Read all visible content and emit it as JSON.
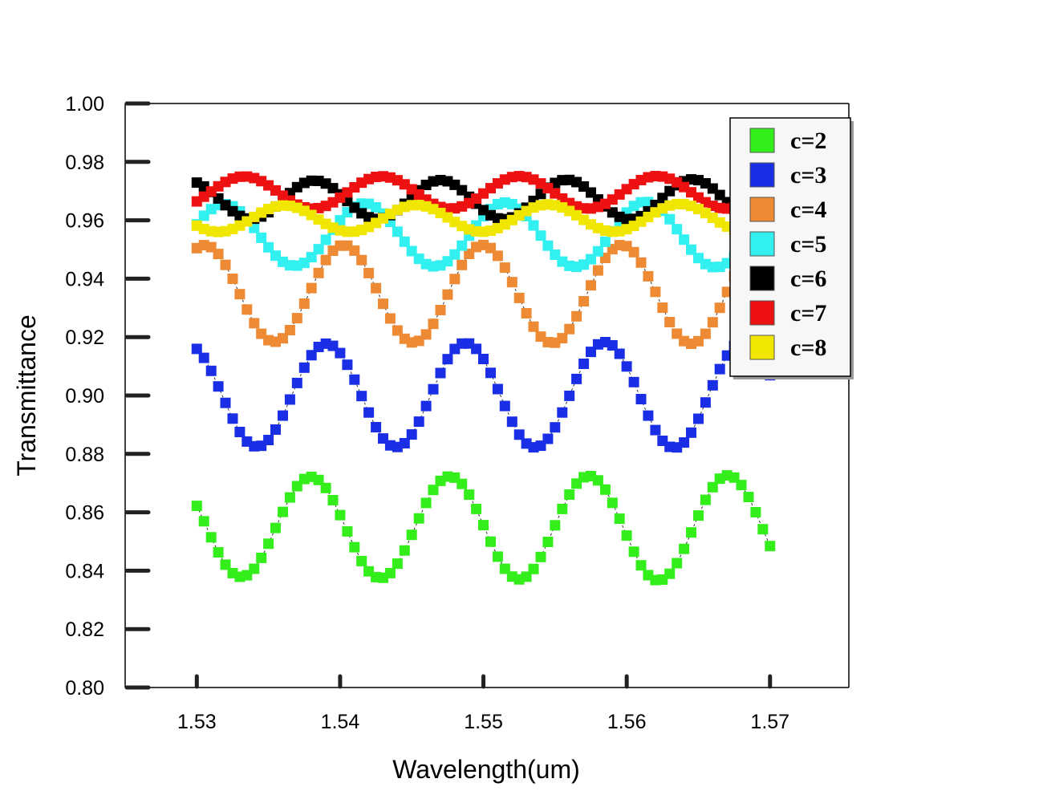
{
  "chart_data": {
    "type": "scatter",
    "xlabel": "Wavelength(um)",
    "ylabel": "Transmittance",
    "xlim": [
      1.525,
      1.5755
    ],
    "ylim": [
      0.8,
      1.0
    ],
    "xticks": [
      "1.53",
      "1.54",
      "1.55",
      "1.56",
      "1.57"
    ],
    "xtick_values": [
      1.53,
      1.54,
      1.55,
      1.56,
      1.57
    ],
    "yticks": [
      "0.80",
      "0.82",
      "0.84",
      "0.86",
      "0.88",
      "0.90",
      "0.92",
      "0.94",
      "0.96",
      "0.98",
      "1.00"
    ],
    "ytick_values": [
      0.8,
      0.82,
      0.84,
      0.86,
      0.88,
      0.9,
      0.92,
      0.94,
      0.96,
      0.98,
      1.0
    ],
    "legend_position": "top-right",
    "x_start": 1.53,
    "x_end": 1.57,
    "num_points": 81,
    "series": [
      {
        "name": "c=2",
        "color": "#33ee1a",
        "model": {
          "mid": [
            0.855,
            -0.0005
          ],
          "amp": [
            0.017,
            0.0012
          ],
          "period": 0.0097,
          "min_x": 1.5331
        }
      },
      {
        "name": "c=3",
        "color": "#1a2ee6",
        "model": {
          "mid": [
            0.9,
            0.0003
          ],
          "amp": [
            0.0175,
            0.0008
          ],
          "period": 0.0097,
          "min_x": 1.5342
        }
      },
      {
        "name": "c=4",
        "color": "#ee8a33",
        "model": {
          "mid": [
            0.935,
            -0.0004
          ],
          "amp": [
            0.0165,
            0.0005
          ],
          "period": 0.0097,
          "min_x": 1.5354
        }
      },
      {
        "name": "c=5",
        "color": "#33f0f0",
        "model": {
          "mid": [
            0.955,
            0.0002
          ],
          "amp": [
            0.0105,
            0.0009
          ],
          "period": 0.0098,
          "min_x": 1.5368
        }
      },
      {
        "name": "c=6",
        "color": "#000000",
        "model": {
          "mid": [
            0.967,
            0.0002
          ],
          "amp": [
            0.0065,
            0.0004
          ],
          "period": 0.0088,
          "min_x": 1.5338
        }
      },
      {
        "name": "c=7",
        "color": "#ee1111",
        "model": {
          "mid": [
            0.9695,
            0.0001
          ],
          "amp": [
            0.0055,
            0.0001
          ],
          "period": 0.0096,
          "min_x": 1.5285
        }
      },
      {
        "name": "c=8",
        "color": "#f0e600",
        "model": {
          "mid": [
            0.9605,
            0.0004
          ],
          "amp": [
            0.0045,
            0.0003
          ],
          "period": 0.0092,
          "min_x": 1.5315
        }
      }
    ]
  }
}
